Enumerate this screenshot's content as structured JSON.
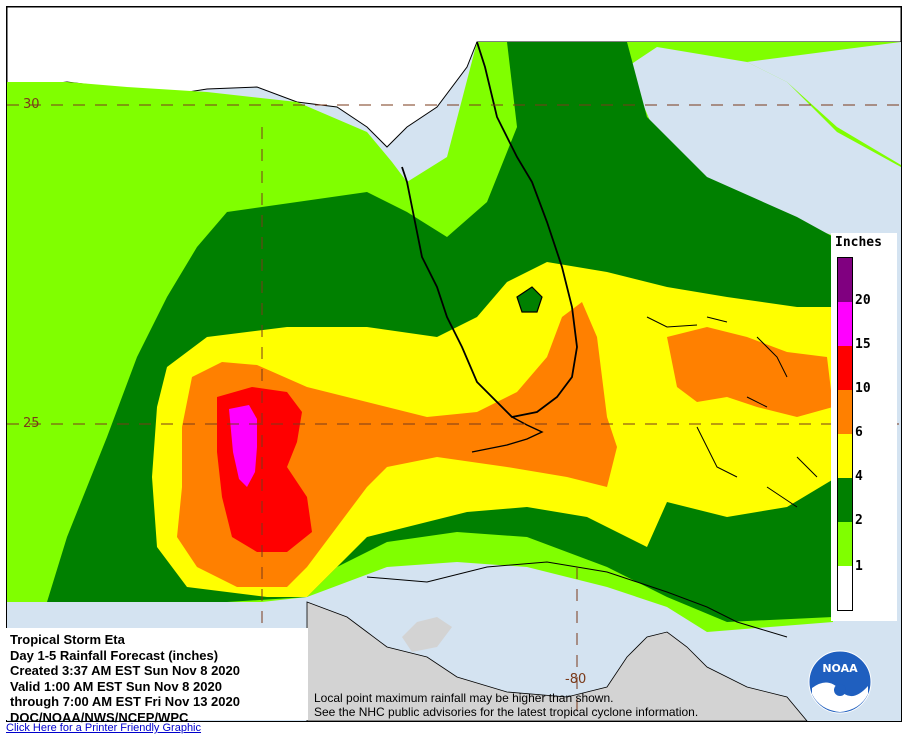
{
  "map": {
    "lat_labels": [
      "30",
      "25"
    ],
    "lon_labels": [
      "-80"
    ]
  },
  "legend": {
    "title": "Inches",
    "ticks": [
      "20",
      "15",
      "10",
      "6",
      "4",
      "2",
      "1"
    ],
    "colors": [
      "#800080",
      "#ff00ff",
      "#ff0000",
      "#ff8000",
      "#ffff00",
      "#008000",
      "#80ff00",
      "#ffffff"
    ]
  },
  "info": {
    "line1": "Tropical Storm Eta",
    "line2": "Day 1-5 Rainfall Forecast (inches)",
    "line3": "Created 3:37 AM EST Sun Nov 8 2020",
    "line4": "Valid 1:00 AM EST Sun Nov 8 2020",
    "line5": "through 7:00 AM EST Fri Nov 13 2020",
    "line6": "DOC/NOAA/NWS/NCEP/WPC"
  },
  "disclaimer": {
    "line1": "Local point maximum rainfall may be higher than shown.",
    "line2": "See the NHC public advisories for the latest tropical cyclone information."
  },
  "logo": {
    "text": "NOAA"
  },
  "link": {
    "text": "Click Here for a Printer Friendly Graphic"
  }
}
